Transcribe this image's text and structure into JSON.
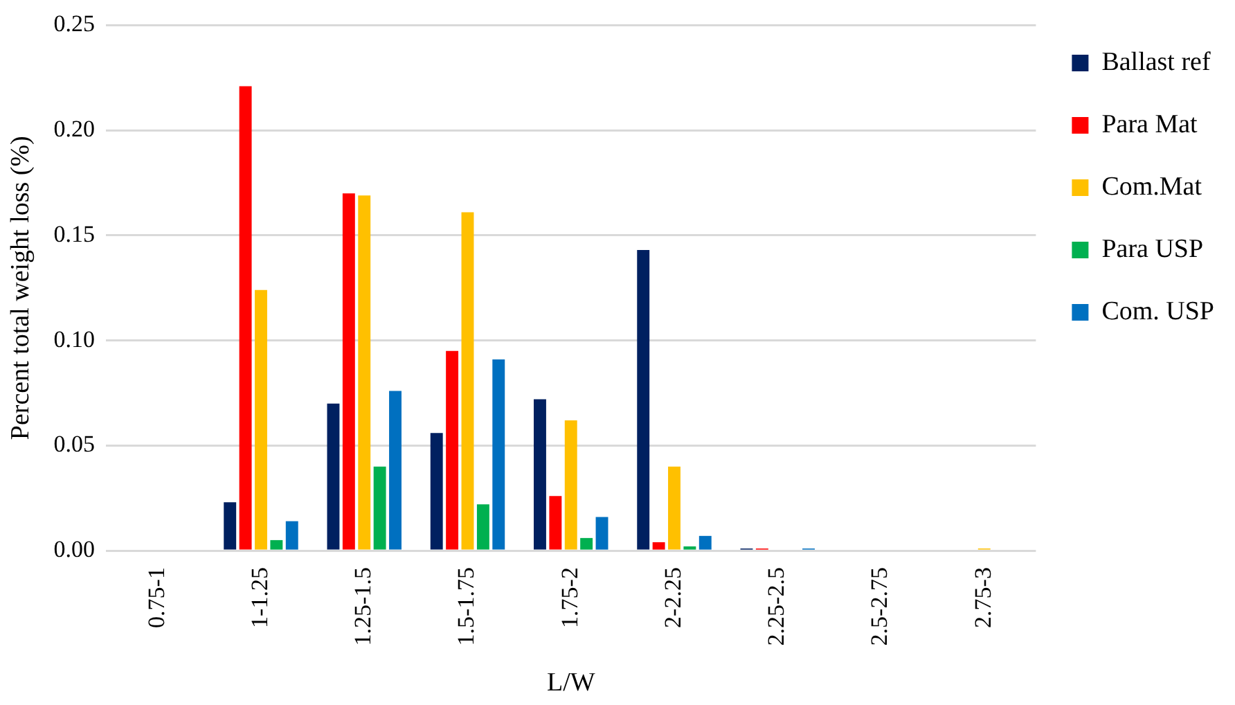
{
  "chart_data": {
    "type": "bar",
    "xlabel": "L/W",
    "ylabel": "Percent total weight loss (%)",
    "categories": [
      "0.75-1",
      "1-1.25",
      "1.25-1.5",
      "1.5-1.75",
      "1.75-2",
      "2-2.25",
      "2.25-2.5",
      "2.5-2.75",
      "2.75-3"
    ],
    "series": [
      {
        "name": "Ballast ref",
        "color": "#002060",
        "values": [
          0,
          0.023,
          0.07,
          0.056,
          0.072,
          0.143,
          0.001,
          0,
          0
        ]
      },
      {
        "name": "Para Mat",
        "color": "#ff0000",
        "values": [
          0,
          0.221,
          0.17,
          0.095,
          0.026,
          0.004,
          0.001,
          0,
          0
        ]
      },
      {
        "name": "Com.Mat",
        "color": "#ffc000",
        "values": [
          0,
          0.124,
          0.169,
          0.161,
          0.062,
          0.04,
          0,
          0,
          0.001
        ]
      },
      {
        "name": "Para USP",
        "color": "#00b050",
        "values": [
          0,
          0.005,
          0.04,
          0.022,
          0.006,
          0.002,
          0,
          0,
          0
        ]
      },
      {
        "name": "Com. USP",
        "color": "#0070c0",
        "values": [
          0,
          0.014,
          0.076,
          0.091,
          0.016,
          0.007,
          0.001,
          0,
          0
        ]
      }
    ],
    "ylim": [
      0,
      0.25
    ],
    "yticks": [
      {
        "value": 0,
        "label": "0.00"
      },
      {
        "value": 0.05,
        "label": "0.05"
      },
      {
        "value": 0.1,
        "label": "0.10"
      },
      {
        "value": 0.15,
        "label": "0.15"
      },
      {
        "value": 0.2,
        "label": "0.20"
      },
      {
        "value": 0.25,
        "label": "0.25"
      }
    ],
    "grid": "y",
    "legend": "top right"
  }
}
